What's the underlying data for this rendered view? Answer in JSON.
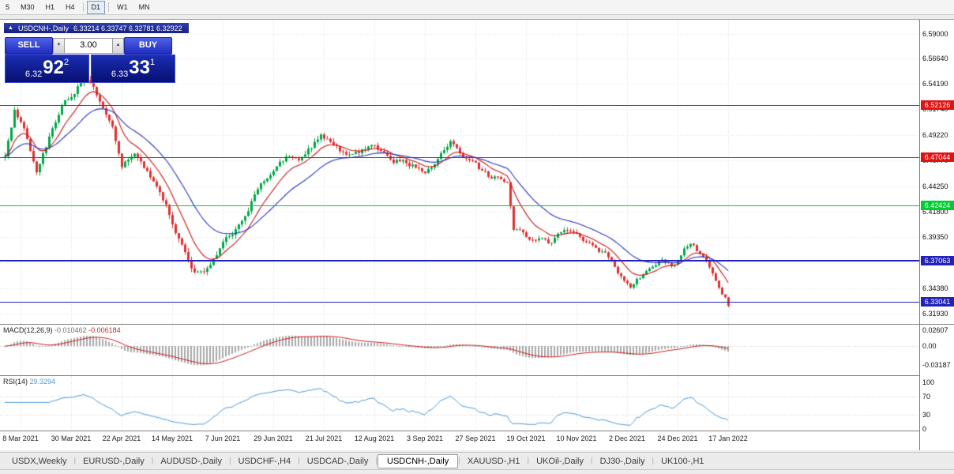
{
  "toolbar": {
    "timeframes": [
      {
        "label": "5",
        "active": false,
        "sep_after": false
      },
      {
        "label": "M30",
        "active": false,
        "sep_after": false
      },
      {
        "label": "H1",
        "active": false,
        "sep_after": false
      },
      {
        "label": "H4",
        "active": false,
        "sep_after": true
      },
      {
        "label": "D1",
        "active": true,
        "sep_after": true
      },
      {
        "label": "W1",
        "active": false,
        "sep_after": false
      },
      {
        "label": "MN",
        "active": false,
        "sep_after": false
      }
    ]
  },
  "chart_header": {
    "collapse_icon": "▲",
    "symbol": "USDCNH-,Daily",
    "ohlc": "6.33214 6.33747 6.32781 6.32922"
  },
  "trade_panel": {
    "sell_label": "SELL",
    "buy_label": "BUY",
    "volume": "3.00",
    "volume_down_icon": "▼",
    "volume_up_icon": "▲",
    "sell_price": {
      "prefix": "6.32",
      "big": "92",
      "sup": "2"
    },
    "buy_price": {
      "prefix": "6.33",
      "big": "33",
      "sup": "1"
    }
  },
  "price_axis": {
    "labels": [
      "6.59000",
      "6.56640",
      "6.54190",
      "6.51740",
      "6.49220",
      "6.46770",
      "6.44250",
      "6.41800",
      "6.39350",
      "6.36900",
      "6.34380",
      "6.31930"
    ]
  },
  "levels": [
    {
      "label": "6.52126",
      "price": 6.52126,
      "color": "#e01212",
      "width": 1
    },
    {
      "label": "6.47044",
      "price": 6.47044,
      "color": "#e01212",
      "width": 1
    },
    {
      "label": "6.42424",
      "price": 6.42424,
      "color": "#00cc33",
      "width": 1
    },
    {
      "label": "6.37063",
      "price": 6.37063,
      "color": "#2222bb",
      "width": 2
    },
    {
      "label": "6.33041",
      "price": 6.33041,
      "color": "#2222bb",
      "width": 1
    }
  ],
  "macd_panel": {
    "name": "MACD(12,26,9)",
    "value_main": "-0.010462",
    "value_signal": "-0.006184",
    "axis_labels": [
      "0.02607",
      "0.00",
      "-0.03187"
    ]
  },
  "rsi_panel": {
    "name": "RSI(14)",
    "value": "29.3294",
    "axis_labels": [
      "100",
      "70",
      "30",
      "0"
    ],
    "level_lines": [
      70,
      30
    ]
  },
  "date_axis": {
    "labels": [
      "8 Mar 2021",
      "30 Mar 2021",
      "22 Apr 2021",
      "14 May 2021",
      "7 Jun 2021",
      "29 Jun 2021",
      "21 Jul 2021",
      "12 Aug 2021",
      "3 Sep 2021",
      "27 Sep 2021",
      "19 Oct 2021",
      "10 Nov 2021",
      "2 Dec 2021",
      "24 Dec 2021",
      "17 Jan 2022"
    ]
  },
  "tabs": {
    "items": [
      "USDX,Weekly",
      "EURUSD-,Daily",
      "AUDUSD-,Daily",
      "USDCHF-,H4",
      "USDCAD-,Daily",
      "USDCNH-,Daily",
      "XAUUSD-,H1",
      "UKOil-,Daily",
      "DJ30-,Daily",
      "UK100-,H1"
    ],
    "active": "USDCNH-,Daily"
  },
  "chart_data": {
    "type": "candlestick",
    "symbol": "USDCNH",
    "timeframe": "Daily",
    "x_range": [
      "8 Mar 2021",
      "21 Jan 2022"
    ],
    "y_range": [
      6.3193,
      6.59
    ],
    "candle_count": 230,
    "tick_start": 5,
    "tick_step": 16,
    "up_color": "#00a846",
    "down_color": "#e03030",
    "ma_fast": {
      "period": 10,
      "color": "#cc1515"
    },
    "ma_slow": {
      "period": 25,
      "color": "#2535c0"
    },
    "noise_seed": 20210308,
    "price_waypoints": [
      [
        0,
        6.47
      ],
      [
        3,
        6.515
      ],
      [
        6,
        6.5
      ],
      [
        10,
        6.455
      ],
      [
        14,
        6.49
      ],
      [
        18,
        6.52
      ],
      [
        22,
        6.535
      ],
      [
        25,
        6.549
      ],
      [
        28,
        6.535
      ],
      [
        31,
        6.52
      ],
      [
        34,
        6.5
      ],
      [
        37,
        6.463
      ],
      [
        41,
        6.472
      ],
      [
        45,
        6.455
      ],
      [
        49,
        6.437
      ],
      [
        53,
        6.408
      ],
      [
        57,
        6.378
      ],
      [
        60,
        6.36
      ],
      [
        63,
        6.357
      ],
      [
        66,
        6.372
      ],
      [
        68,
        6.383
      ],
      [
        72,
        6.398
      ],
      [
        76,
        6.412
      ],
      [
        80,
        6.44
      ],
      [
        85,
        6.459
      ],
      [
        89,
        6.47
      ],
      [
        93,
        6.468
      ],
      [
        96,
        6.478
      ],
      [
        100,
        6.49
      ],
      [
        103,
        6.488
      ],
      [
        107,
        6.474
      ],
      [
        112,
        6.476
      ],
      [
        117,
        6.48
      ],
      [
        122,
        6.468
      ],
      [
        127,
        6.465
      ],
      [
        133,
        6.458
      ],
      [
        136,
        6.462
      ],
      [
        141,
        6.488
      ],
      [
        145,
        6.47
      ],
      [
        149,
        6.462
      ],
      [
        153,
        6.452
      ],
      [
        156,
        6.45
      ],
      [
        159,
        6.449
      ],
      [
        161,
        6.4
      ],
      [
        166,
        6.393
      ],
      [
        172,
        6.388
      ],
      [
        177,
        6.398
      ],
      [
        181,
        6.397
      ],
      [
        186,
        6.383
      ],
      [
        191,
        6.375
      ],
      [
        194,
        6.36
      ],
      [
        198,
        6.342
      ],
      [
        203,
        6.362
      ],
      [
        207,
        6.37
      ],
      [
        212,
        6.366
      ],
      [
        217,
        6.389
      ],
      [
        221,
        6.372
      ],
      [
        225,
        6.352
      ],
      [
        229,
        6.329
      ]
    ],
    "indicators": {
      "macd": {
        "fast": 12,
        "slow": 26,
        "signal": 9,
        "last_main": -0.010462,
        "last_signal": -0.006184
      },
      "rsi": {
        "period": 14,
        "last": 29.3294
      }
    }
  }
}
